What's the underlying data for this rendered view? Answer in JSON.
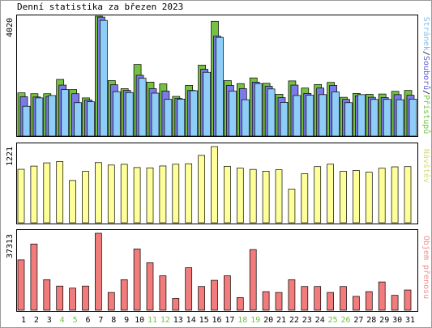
{
  "page": {
    "title": "Denní statistika za březen 2023"
  },
  "colors": {
    "hits": "#76c043",
    "files": "#7a7ae8",
    "pages": "#8ecdf7",
    "visits": "#ffff99",
    "kbytes": "#f27c7c",
    "weekend_day": "#76c043",
    "weekday": "#000000"
  },
  "chart_data": [
    {
      "type": "bar",
      "panel": "hits-files-pages",
      "categories": [
        "1",
        "2",
        "3",
        "4",
        "5",
        "6",
        "7",
        "8",
        "9",
        "10",
        "11",
        "12",
        "13",
        "14",
        "15",
        "16",
        "17",
        "18",
        "19",
        "20",
        "21",
        "22",
        "23",
        "24",
        "25",
        "26",
        "27",
        "28",
        "29",
        "30",
        "31"
      ],
      "weekend_days": [
        "4",
        "5",
        "11",
        "12",
        "18",
        "19",
        "25",
        "26"
      ],
      "ymax_label": "4020",
      "ylim": [
        0,
        4020
      ],
      "legend": {
        "position": "right",
        "pages": "Stránek",
        "files": "Souborů",
        "hits": "Přístupů",
        "separator": "/"
      },
      "series": [
        {
          "key": "hits",
          "name": "Přístupů",
          "values": [
            1450,
            1420,
            1420,
            1900,
            1560,
            1280,
            4020,
            1860,
            1590,
            2400,
            1810,
            1750,
            1330,
            1700,
            2380,
            3850,
            1860,
            1760,
            1950,
            1770,
            1400,
            1850,
            1610,
            1730,
            1800,
            1300,
            1430,
            1400,
            1410,
            1500,
            1530
          ]
        },
        {
          "key": "files",
          "name": "Souborů",
          "values": [
            1320,
            1310,
            1330,
            1710,
            1420,
            1210,
            3990,
            1720,
            1530,
            2040,
            1590,
            1510,
            1260,
            1530,
            2240,
            3350,
            1700,
            1590,
            1810,
            1670,
            1290,
            1710,
            1430,
            1610,
            1700,
            1230,
            1350,
            1300,
            1290,
            1390,
            1370
          ]
        },
        {
          "key": "pages",
          "name": "Stránek",
          "values": [
            1000,
            1280,
            1360,
            1560,
            1120,
            1150,
            3880,
            1490,
            1460,
            1940,
            1440,
            1230,
            1240,
            1520,
            2140,
            3310,
            1510,
            1220,
            1760,
            1580,
            1130,
            1360,
            1370,
            1390,
            1480,
            1120,
            1390,
            1230,
            1230,
            1220,
            1240
          ]
        }
      ]
    },
    {
      "type": "bar",
      "panel": "visits",
      "categories": [
        "1",
        "2",
        "3",
        "4",
        "5",
        "6",
        "7",
        "8",
        "9",
        "10",
        "11",
        "12",
        "13",
        "14",
        "15",
        "16",
        "17",
        "18",
        "19",
        "20",
        "21",
        "22",
        "23",
        "24",
        "25",
        "26",
        "27",
        "28",
        "29",
        "30",
        "31"
      ],
      "ymax_label": "1221",
      "ylim": [
        0,
        1221
      ],
      "legend": {
        "position": "right",
        "visits": "Návštěv"
      },
      "series": [
        {
          "key": "visits",
          "name": "Návštěv",
          "values": [
            857,
            908,
            960,
            982,
            677,
            823,
            964,
            925,
            937,
            885,
            880,
            910,
            938,
            946,
            1080,
            1221,
            905,
            875,
            855,
            826,
            850,
            539,
            786,
            900,
            939,
            825,
            838,
            810,
            874,
            896,
            900
          ]
        }
      ]
    },
    {
      "type": "bar",
      "panel": "kbytes",
      "categories": [
        "1",
        "2",
        "3",
        "4",
        "5",
        "6",
        "7",
        "8",
        "9",
        "10",
        "11",
        "12",
        "13",
        "14",
        "15",
        "16",
        "17",
        "18",
        "19",
        "20",
        "21",
        "22",
        "23",
        "24",
        "25",
        "26",
        "27",
        "28",
        "29",
        "30",
        "31"
      ],
      "ymax_label": "37313",
      "ylim": [
        0,
        37313
      ],
      "legend": {
        "position": "right",
        "kbytes": "Objem přenosu"
      },
      "series": [
        {
          "key": "kbytes",
          "name": "Objem přenosu",
          "values": [
            24400,
            32100,
            14800,
            11700,
            10700,
            11700,
            37313,
            8600,
            14800,
            29700,
            23000,
            16700,
            5700,
            20600,
            11500,
            14500,
            16700,
            6100,
            29400,
            9000,
            8600,
            14800,
            11500,
            11500,
            8600,
            11500,
            6700,
            9000,
            13700,
            7200,
            9800
          ]
        }
      ]
    }
  ]
}
